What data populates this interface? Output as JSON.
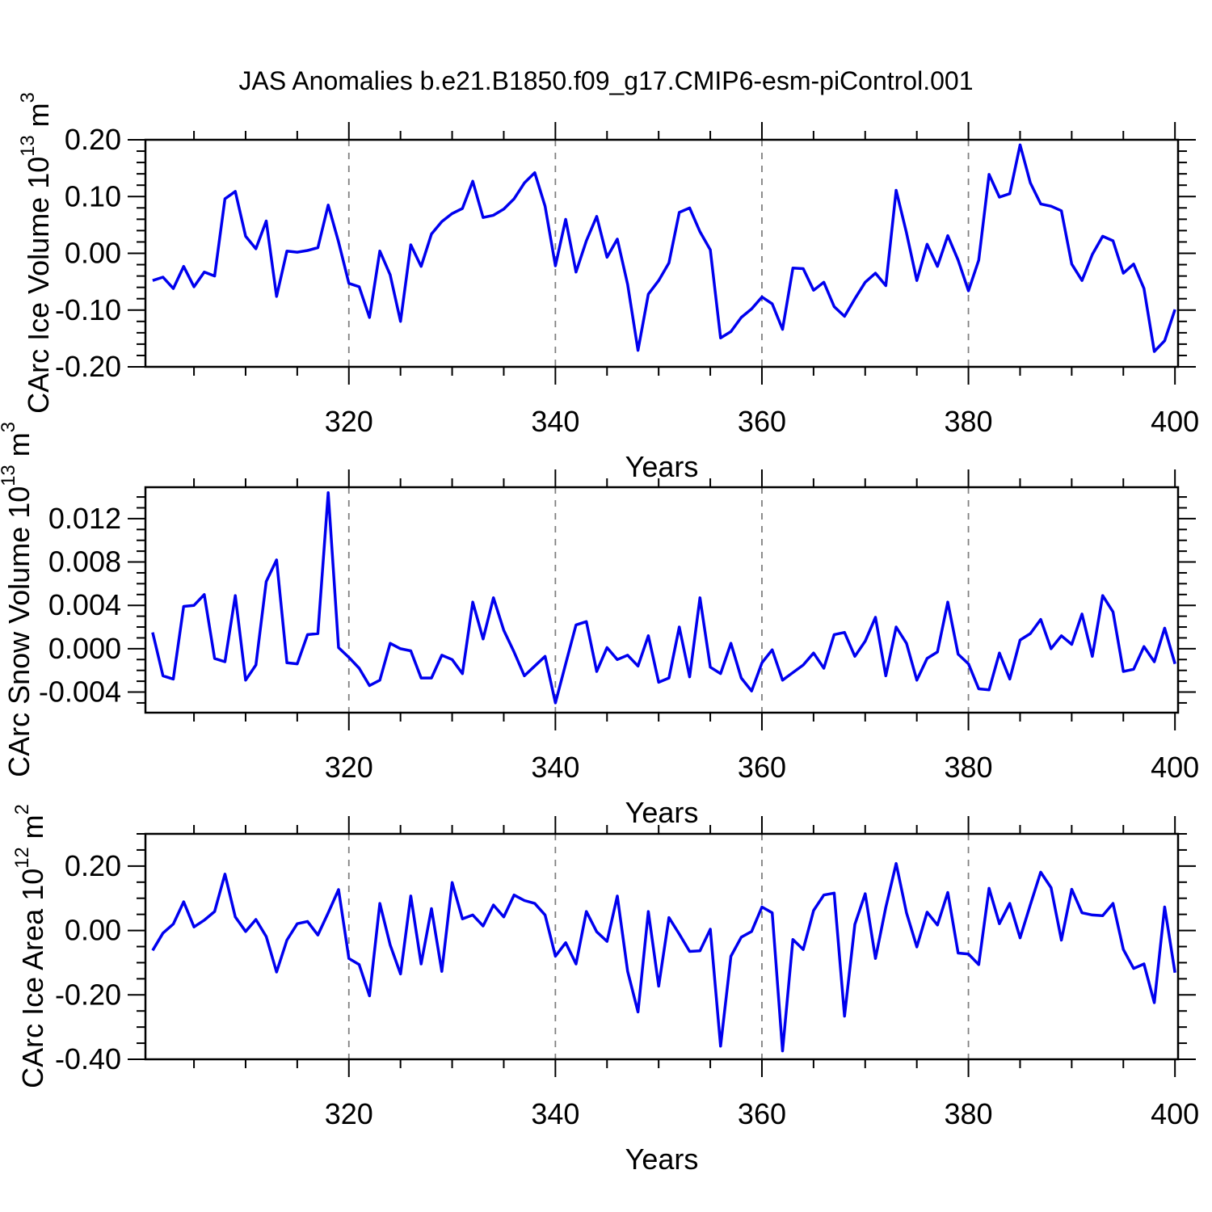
{
  "title": "JAS Anomalies b.e21.B1850.f09_g17.CMIP6-esm-piControl.001",
  "line_color": "#0000ee",
  "grid_color": "#808080",
  "axis_color": "#000000",
  "chart_data": {
    "type": "line",
    "x_label": "Years",
    "xlim": [
      300.3,
      400.3
    ],
    "xticks": [
      320,
      340,
      360,
      380,
      400
    ],
    "xtick_labels": [
      "320",
      "340",
      "360",
      "380",
      "400"
    ],
    "xtick_minor_step": 5,
    "grid_years": [
      320,
      340,
      360,
      380
    ],
    "legend": "none",
    "grid": "vertical-dashed",
    "years": [
      301,
      302,
      303,
      304,
      305,
      306,
      307,
      308,
      309,
      310,
      311,
      312,
      313,
      314,
      315,
      316,
      317,
      318,
      319,
      320,
      321,
      322,
      323,
      324,
      325,
      326,
      327,
      328,
      329,
      330,
      331,
      332,
      333,
      334,
      335,
      336,
      337,
      338,
      339,
      340,
      341,
      342,
      343,
      344,
      345,
      346,
      347,
      348,
      349,
      350,
      351,
      352,
      353,
      354,
      355,
      356,
      357,
      358,
      359,
      360,
      361,
      362,
      363,
      364,
      365,
      366,
      367,
      368,
      369,
      370,
      371,
      372,
      373,
      374,
      375,
      376,
      377,
      378,
      379,
      380,
      381,
      382,
      383,
      384,
      385,
      386,
      387,
      388,
      389,
      390,
      391,
      392,
      393,
      394,
      395,
      396,
      397,
      398,
      399,
      400
    ],
    "panels": [
      {
        "name": "ice-volume",
        "ylabel": {
          "prefix": "CArc Ice Volume 10",
          "exp1": "13",
          "mid": " m",
          "exp2": "3"
        },
        "ylim": [
          -0.2,
          0.2
        ],
        "yticks": [
          0.2,
          0.1,
          0.0,
          -0.1,
          -0.2
        ],
        "ytick_labels": [
          "0.20",
          "0.10",
          "0.00",
          "-0.10",
          "-0.20"
        ],
        "ytick_minor_step": 0.02,
        "values": [
          -0.048,
          -0.042,
          -0.062,
          -0.023,
          -0.059,
          -0.033,
          -0.04,
          0.096,
          0.109,
          0.03,
          0.008,
          0.057,
          -0.076,
          0.004,
          0.002,
          0.005,
          0.01,
          0.085,
          0.02,
          -0.053,
          -0.059,
          -0.113,
          0.004,
          -0.038,
          -0.12,
          0.015,
          -0.023,
          0.034,
          0.056,
          0.07,
          0.079,
          0.127,
          0.063,
          0.067,
          0.078,
          0.096,
          0.124,
          0.142,
          0.083,
          -0.022,
          0.06,
          -0.033,
          0.022,
          0.065,
          -0.007,
          0.025,
          -0.055,
          -0.171,
          -0.072,
          -0.048,
          -0.017,
          0.072,
          0.08,
          0.038,
          0.006,
          -0.149,
          -0.138,
          -0.113,
          -0.098,
          -0.077,
          -0.089,
          -0.134,
          -0.026,
          -0.027,
          -0.065,
          -0.051,
          -0.094,
          -0.111,
          -0.08,
          -0.051,
          -0.035,
          -0.057,
          0.111,
          0.036,
          -0.048,
          0.016,
          -0.023,
          0.031,
          -0.012,
          -0.066,
          -0.012,
          0.139,
          0.099,
          0.105,
          0.191,
          0.124,
          0.087,
          0.083,
          0.075,
          -0.019,
          -0.048,
          -0.002,
          0.03,
          0.022,
          -0.035,
          -0.019,
          -0.062,
          -0.173,
          -0.154,
          -0.099
        ]
      },
      {
        "name": "snow-volume",
        "ylabel": {
          "prefix": "CArc Snow Volume 10",
          "exp1": "13",
          "mid": " m",
          "exp2": "3"
        },
        "ylim": [
          -0.0059,
          0.0149
        ],
        "yticks": [
          0.012,
          0.008,
          0.004,
          0.0,
          -0.004
        ],
        "ytick_labels": [
          "0.012",
          "0.008",
          "0.004",
          "0.000",
          "-0.004"
        ],
        "ytick_minor_step": 0.001,
        "values": [
          0.0015,
          -0.0025,
          -0.0028,
          0.0039,
          0.004,
          0.005,
          -0.0009,
          -0.0012,
          0.0049,
          -0.0029,
          -0.0015,
          0.0062,
          0.0082,
          -0.0013,
          -0.0014,
          0.0013,
          0.0014,
          0.0144,
          0.0001,
          -0.0008,
          -0.0018,
          -0.0034,
          -0.0029,
          0.0005,
          0.0,
          -0.0002,
          -0.0027,
          -0.0027,
          -0.0006,
          -0.001,
          -0.0023,
          0.0043,
          0.0009,
          0.0047,
          0.0017,
          -0.0003,
          -0.0025,
          -0.0016,
          -0.0007,
          -0.005,
          -0.0014,
          0.0022,
          0.0025,
          -0.0021,
          0.0001,
          -0.001,
          -0.0006,
          -0.0016,
          0.0012,
          -0.0031,
          -0.0027,
          0.002,
          -0.0026,
          0.0047,
          -0.0017,
          -0.0023,
          0.0005,
          -0.0027,
          -0.0039,
          -0.0013,
          -0.0001,
          -0.0029,
          -0.0022,
          -0.0015,
          -0.0004,
          -0.0018,
          0.0013,
          0.0015,
          -0.0007,
          0.0007,
          0.0029,
          -0.0025,
          0.002,
          0.0005,
          -0.0029,
          -0.0009,
          -0.0003,
          0.0043,
          -0.0005,
          -0.0014,
          -0.0037,
          -0.0038,
          -0.0004,
          -0.0028,
          0.0008,
          0.0014,
          0.0027,
          0.0,
          0.0012,
          0.0004,
          0.0032,
          -0.0007,
          0.0049,
          0.0034,
          -0.0021,
          -0.0019,
          0.0002,
          -0.0012,
          0.0019,
          -0.0014
        ]
      },
      {
        "name": "ice-area",
        "ylabel": {
          "prefix": "CArc Ice Area 10",
          "exp1": "12",
          "mid": " m",
          "exp2": "2"
        },
        "ylim": [
          -0.4,
          0.3
        ],
        "yticks": [
          0.2,
          0.0,
          -0.2,
          -0.4
        ],
        "ytick_labels": [
          "0.20",
          "0.00",
          "-0.20",
          "-0.40"
        ],
        "ytick_minor_step": 0.05,
        "values": [
          -0.062,
          -0.008,
          0.02,
          0.089,
          0.011,
          0.032,
          0.059,
          0.175,
          0.042,
          -0.003,
          0.034,
          -0.019,
          -0.129,
          -0.03,
          0.021,
          0.028,
          -0.014,
          0.055,
          0.127,
          -0.087,
          -0.106,
          -0.203,
          0.084,
          -0.045,
          -0.135,
          0.107,
          -0.104,
          0.068,
          -0.127,
          0.149,
          0.036,
          0.048,
          0.014,
          0.079,
          0.042,
          0.11,
          0.093,
          0.084,
          0.048,
          -0.08,
          -0.038,
          -0.104,
          0.059,
          -0.004,
          -0.034,
          0.107,
          -0.127,
          -0.253,
          0.059,
          -0.173,
          0.04,
          -0.011,
          -0.065,
          -0.063,
          0.004,
          -0.359,
          -0.08,
          -0.021,
          -0.003,
          0.073,
          0.055,
          -0.374,
          -0.028,
          -0.059,
          0.062,
          0.11,
          0.116,
          -0.266,
          0.019,
          0.114,
          -0.087,
          0.072,
          0.208,
          0.055,
          -0.051,
          0.057,
          0.017,
          0.118,
          -0.07,
          -0.073,
          -0.106,
          0.131,
          0.021,
          0.084,
          -0.023,
          0.08,
          0.181,
          0.133,
          -0.03,
          0.128,
          0.055,
          0.048,
          0.046,
          0.084,
          -0.059,
          -0.118,
          -0.104,
          -0.224,
          0.073,
          -0.131
        ]
      }
    ]
  }
}
